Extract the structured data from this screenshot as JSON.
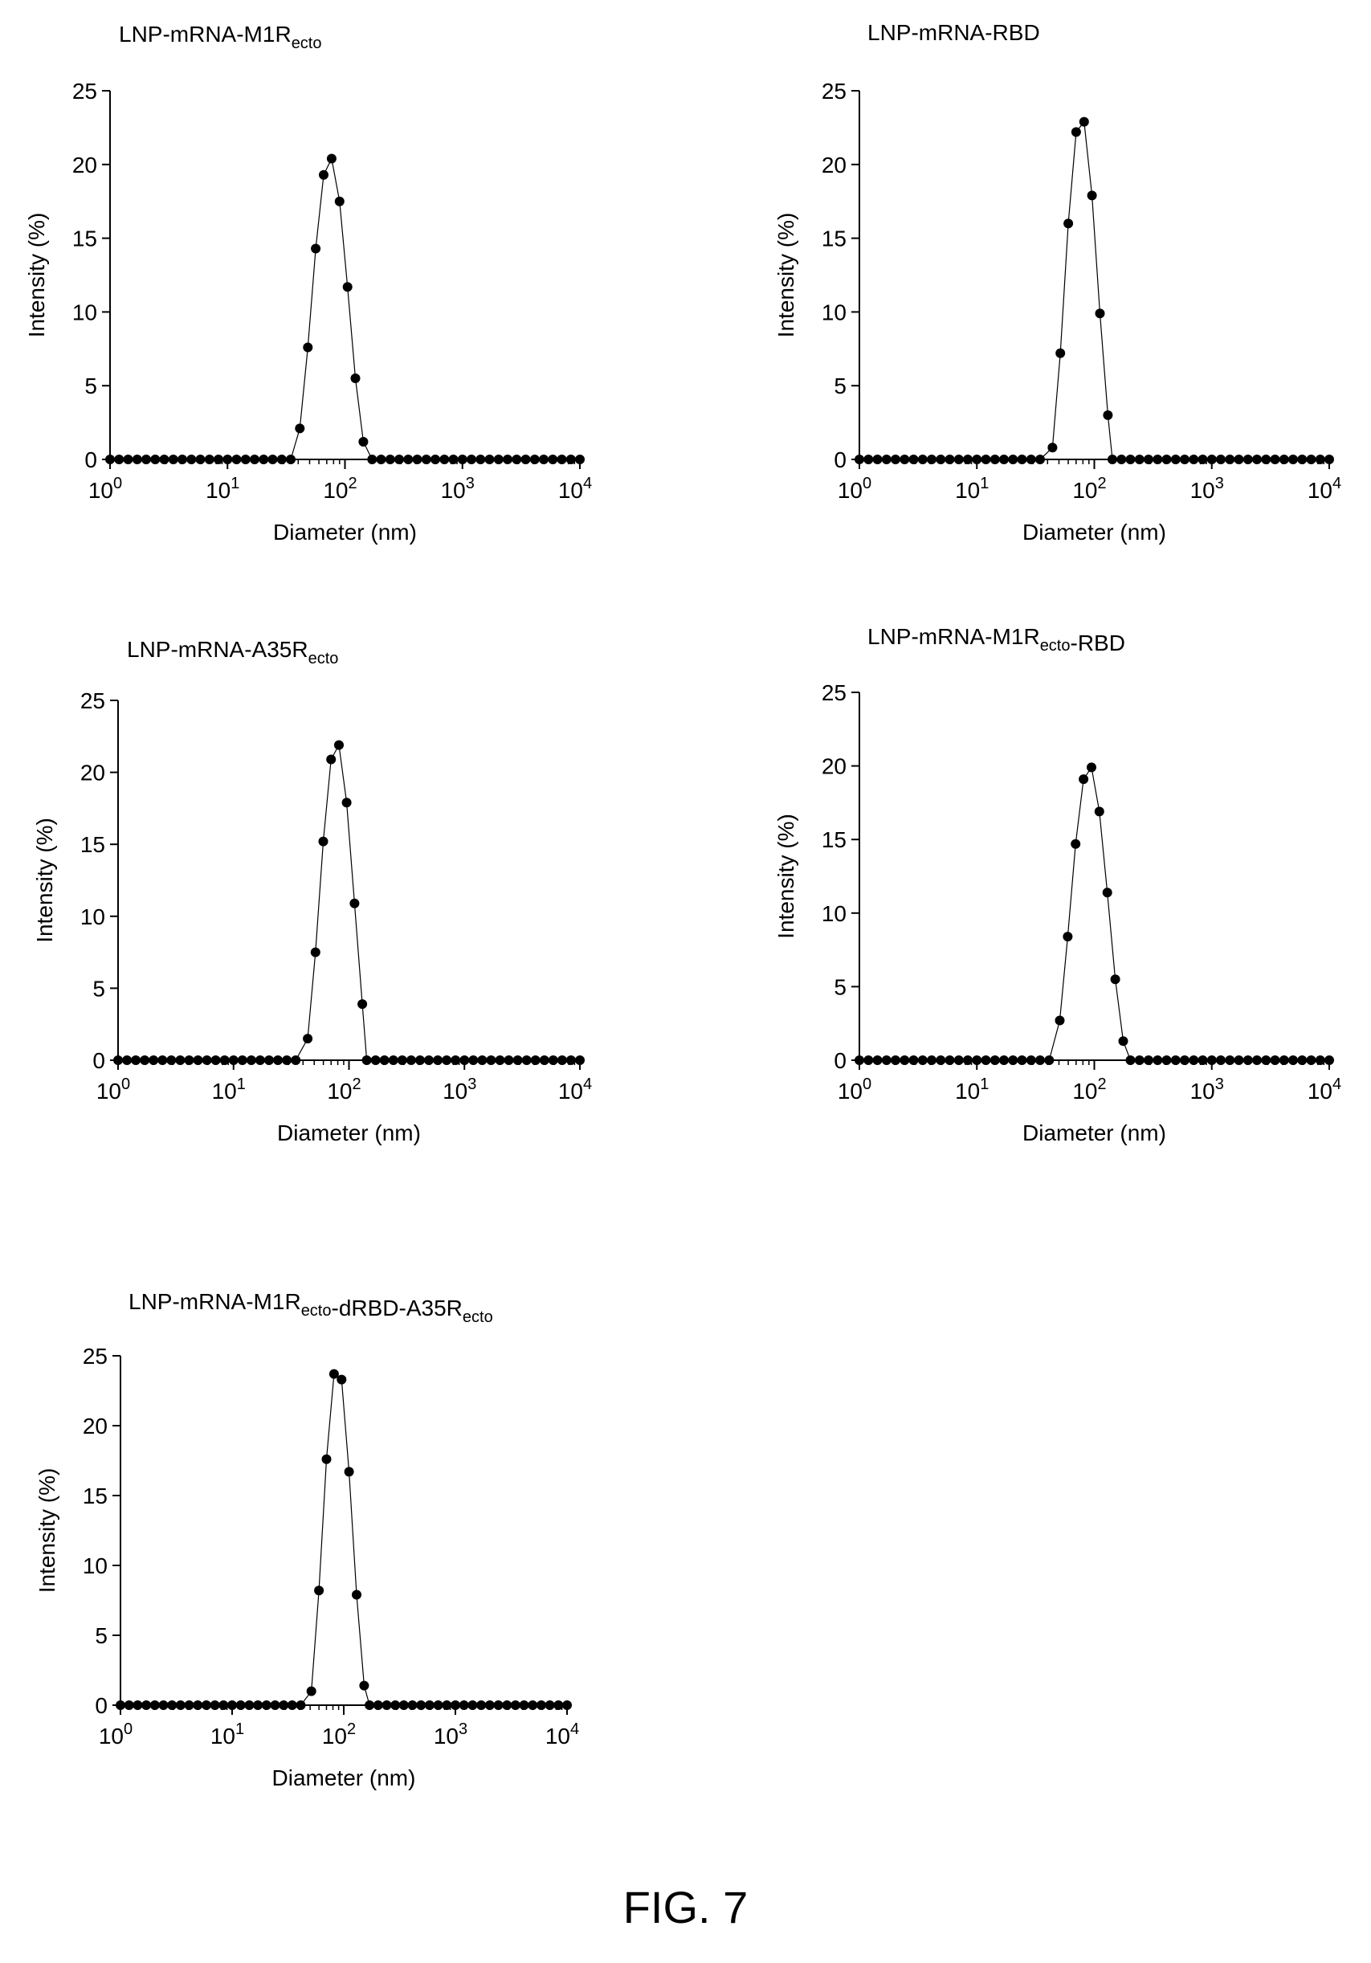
{
  "figure_label": "FIG. 7",
  "chart_data": [
    {
      "type": "scatter",
      "title": {
        "base": "LNP-mRNA-M1R",
        "parts": [
          {
            "sub": "ecto"
          }
        ]
      },
      "xlabel": "Diameter (nm)",
      "ylabel": "Intensity (%)",
      "x_scale": "log",
      "xlim": [
        1,
        10000
      ],
      "ylim": [
        0,
        25
      ],
      "xticks": [
        1,
        10,
        100,
        1000,
        10000
      ],
      "xtick_labels": [
        "10^0",
        "10^1",
        "10^2",
        "10^3",
        "10^4"
      ],
      "yticks": [
        0,
        5,
        10,
        15,
        20,
        25
      ],
      "series": [
        {
          "line": true,
          "markers": true,
          "peak": [
            [
              41.3,
              2.1
            ],
            [
              48.3,
              7.6
            ],
            [
              56.4,
              14.3
            ],
            [
              65.9,
              19.3
            ],
            [
              77.0,
              20.4
            ],
            [
              90.0,
              17.5
            ],
            [
              105.1,
              11.7
            ],
            [
              122.8,
              5.5
            ],
            [
              143.5,
              1.2
            ]
          ]
        }
      ]
    },
    {
      "type": "scatter",
      "title": {
        "base": "LNP-mRNA-RBD",
        "parts": []
      },
      "xlabel": "Diameter (nm)",
      "ylabel": "Intensity (%)",
      "x_scale": "log",
      "xlim": [
        1,
        10000
      ],
      "ylim": [
        0,
        25
      ],
      "xticks": [
        1,
        10,
        100,
        1000,
        10000
      ],
      "xtick_labels": [
        "10^0",
        "10^1",
        "10^2",
        "10^3",
        "10^4"
      ],
      "yticks": [
        0,
        5,
        10,
        15,
        20,
        25
      ],
      "series": [
        {
          "line": true,
          "markers": true,
          "peak": [
            [
              44.0,
              0.8
            ],
            [
              51.4,
              7.2
            ],
            [
              60.0,
              16.0
            ],
            [
              70.1,
              22.2
            ],
            [
              81.9,
              22.9
            ],
            [
              95.6,
              17.9
            ],
            [
              111.7,
              9.9
            ],
            [
              130.5,
              3.0
            ]
          ]
        }
      ]
    },
    {
      "type": "scatter",
      "title": {
        "base": "LNP-mRNA-A35R",
        "parts": [
          {
            "sub": "ecto"
          }
        ]
      },
      "xlabel": "Diameter (nm)",
      "ylabel": "Intensity (%)",
      "x_scale": "log",
      "xlim": [
        1,
        10000
      ],
      "ylim": [
        0,
        25
      ],
      "xticks": [
        1,
        10,
        100,
        1000,
        10000
      ],
      "xtick_labels": [
        "10^0",
        "10^1",
        "10^2",
        "10^3",
        "10^4"
      ],
      "yticks": [
        0,
        5,
        10,
        15,
        20,
        25
      ],
      "series": [
        {
          "line": true,
          "markers": true,
          "peak": [
            [
              43.9,
              1.5
            ],
            [
              51.3,
              7.5
            ],
            [
              59.9,
              15.2
            ],
            [
              70.0,
              20.9
            ],
            [
              81.8,
              21.9
            ],
            [
              95.5,
              17.9
            ],
            [
              111.6,
              10.9
            ],
            [
              130.4,
              3.9
            ]
          ]
        }
      ]
    },
    {
      "type": "scatter",
      "title": {
        "base": "LNP-mRNA-M1R",
        "parts": [
          {
            "sub": "ecto"
          },
          {
            "text": "-RBD"
          }
        ]
      },
      "xlabel": "Diameter (nm)",
      "ylabel": "Intensity (%)",
      "x_scale": "log",
      "xlim": [
        1,
        10000
      ],
      "ylim": [
        0,
        25
      ],
      "xticks": [
        1,
        10,
        100,
        1000,
        10000
      ],
      "xtick_labels": [
        "10^0",
        "10^1",
        "10^2",
        "10^3",
        "10^4"
      ],
      "yticks": [
        0,
        5,
        10,
        15,
        20,
        25
      ],
      "series": [
        {
          "line": true,
          "markers": true,
          "peak": [
            [
              50.8,
              2.7
            ],
            [
              59.4,
              8.4
            ],
            [
              69.3,
              14.7
            ],
            [
              81.0,
              19.1
            ],
            [
              94.6,
              19.9
            ],
            [
              110.5,
              16.9
            ],
            [
              129.1,
              11.4
            ],
            [
              150.8,
              5.5
            ],
            [
              176.2,
              1.3
            ]
          ]
        }
      ]
    },
    {
      "type": "scatter",
      "title": {
        "base": "LNP-mRNA-M1R",
        "parts": [
          {
            "sub": "ecto"
          },
          {
            "text": "-dRBD-A35R"
          },
          {
            "sub": "ecto"
          }
        ]
      },
      "xlabel": "Diameter (nm)",
      "ylabel": "Intensity (%)",
      "x_scale": "log",
      "xlim": [
        1,
        10000
      ],
      "ylim": [
        0,
        25
      ],
      "xticks": [
        1,
        10,
        100,
        1000,
        10000
      ],
      "xtick_labels": [
        "10^0",
        "10^1",
        "10^2",
        "10^3",
        "10^4"
      ],
      "yticks": [
        0,
        5,
        10,
        15,
        20,
        25
      ],
      "series": [
        {
          "line": true,
          "markers": true,
          "peak": [
            [
              51.3,
              1.0
            ],
            [
              59.9,
              8.2
            ],
            [
              70.0,
              17.6
            ],
            [
              81.8,
              23.7
            ],
            [
              95.6,
              23.3
            ],
            [
              111.6,
              16.7
            ],
            [
              130.4,
              7.9
            ],
            [
              152.3,
              1.4
            ]
          ]
        }
      ]
    }
  ]
}
